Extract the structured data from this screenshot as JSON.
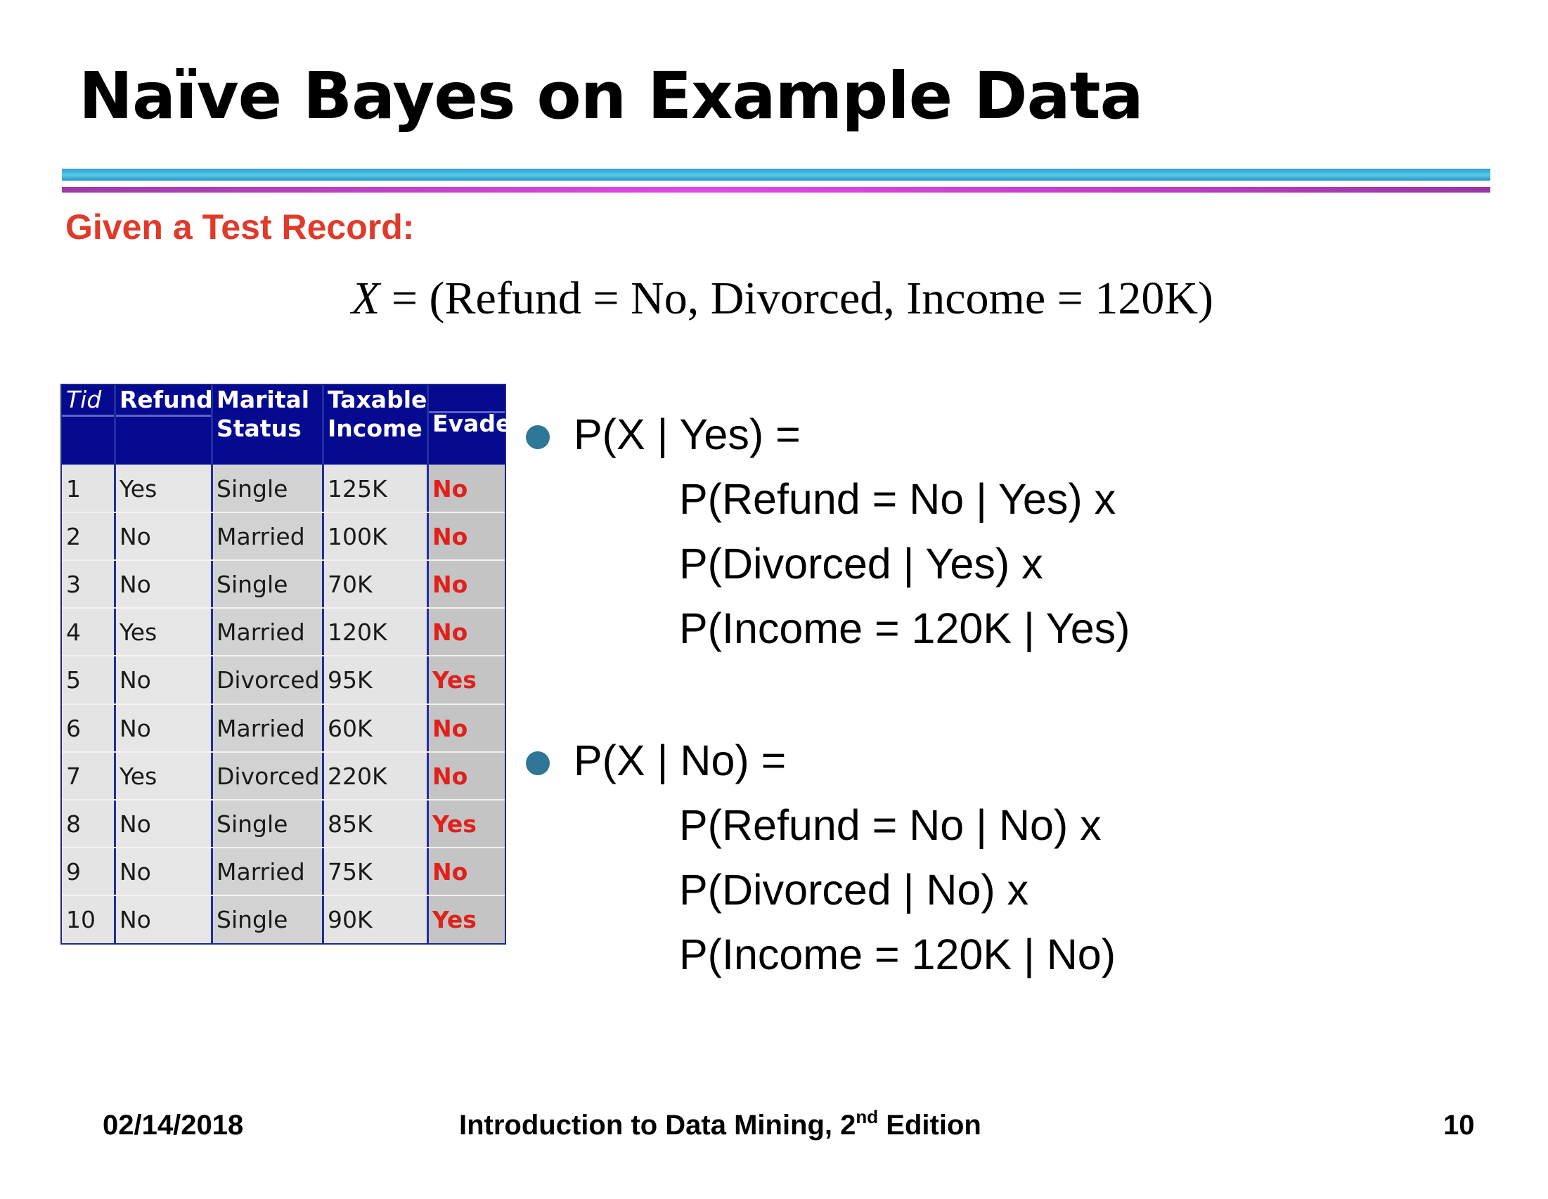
{
  "slide": {
    "title": "Naïve Bayes on Example Data",
    "subtitle": "Given a Test Record:",
    "formula": {
      "var": "X",
      "rest": " = (Refund = No, Divorced, Income = 120K)"
    }
  },
  "table": {
    "headers": {
      "tid": "Tid",
      "refund": "Refund",
      "marital_1": "Marital",
      "marital_2": "Status",
      "taxable_1": "Taxable",
      "taxable_2": "Income",
      "evade": "Evade"
    },
    "rows": [
      {
        "tid": "1",
        "refund": "Yes",
        "marital": "Single",
        "income": "125K",
        "evade": "No"
      },
      {
        "tid": "2",
        "refund": "No",
        "marital": "Married",
        "income": "100K",
        "evade": "No"
      },
      {
        "tid": "3",
        "refund": "No",
        "marital": "Single",
        "income": "70K",
        "evade": "No"
      },
      {
        "tid": "4",
        "refund": "Yes",
        "marital": "Married",
        "income": "120K",
        "evade": "No"
      },
      {
        "tid": "5",
        "refund": "No",
        "marital": "Divorced",
        "income": "95K",
        "evade": "Yes"
      },
      {
        "tid": "6",
        "refund": "No",
        "marital": "Married",
        "income": "60K",
        "evade": "No"
      },
      {
        "tid": "7",
        "refund": "Yes",
        "marital": "Divorced",
        "income": "220K",
        "evade": "No"
      },
      {
        "tid": "8",
        "refund": "No",
        "marital": "Single",
        "income": "85K",
        "evade": "Yes"
      },
      {
        "tid": "9",
        "refund": "No",
        "marital": "Married",
        "income": "75K",
        "evade": "No"
      },
      {
        "tid": "10",
        "refund": "No",
        "marital": "Single",
        "income": "90K",
        "evade": "Yes"
      }
    ]
  },
  "bullets": [
    {
      "heading": "P(X | Yes) =",
      "lines": [
        "P(Refund = No | Yes) x",
        "P(Divorced | Yes) x",
        "P(Income = 120K | Yes)"
      ]
    },
    {
      "heading": "P(X | No) =",
      "lines": [
        "P(Refund = No | No) x",
        "P(Divorced | No) x",
        "P(Income = 120K | No)"
      ]
    }
  ],
  "footer": {
    "date": "02/14/2018",
    "book_prefix": "Introduction to Data Mining, 2",
    "book_sup": "nd",
    "book_suffix": " Edition",
    "page": "10"
  },
  "colors": {
    "title": "#000000",
    "subtitle": "#e03a2a",
    "table_header": "#060a90",
    "evade_text": "#e0201a",
    "bullet": "#2f7796"
  }
}
